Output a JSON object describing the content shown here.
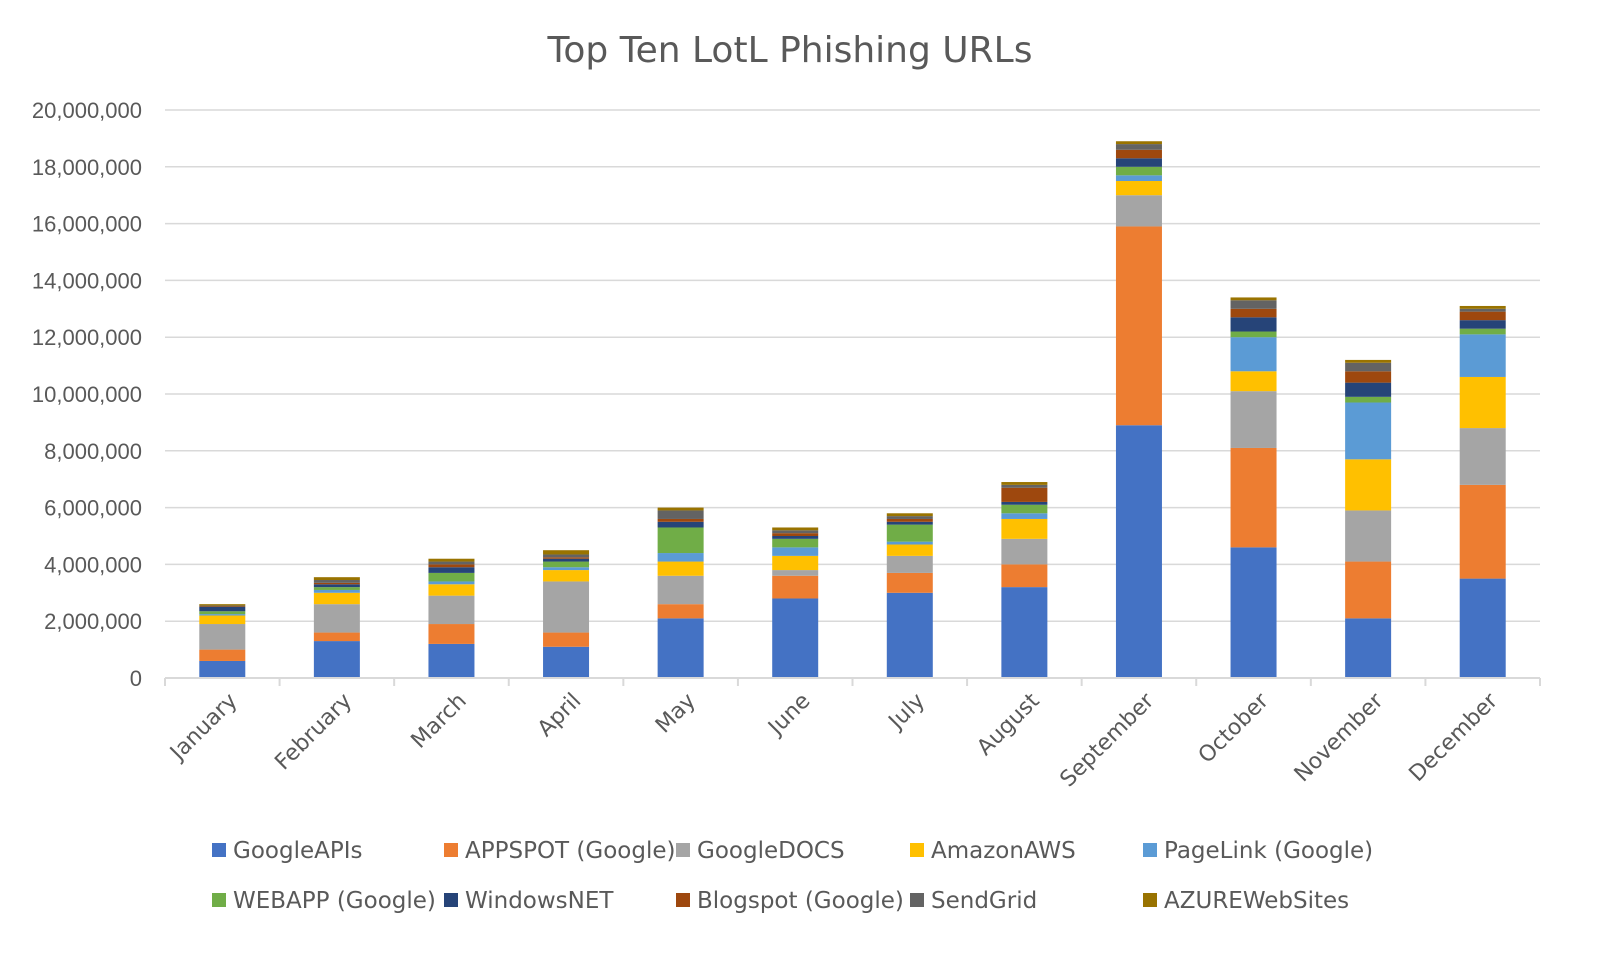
{
  "chart_data": {
    "type": "bar",
    "stacked": true,
    "title": "Top Ten LotL Phishing URLs",
    "xlabel": "",
    "ylabel": "",
    "ylim": [
      0,
      20000000
    ],
    "yticks": [
      "0",
      "2,000,000",
      "4,000,000",
      "6,000,000",
      "8,000,000",
      "10,000,000",
      "12,000,000",
      "14,000,000",
      "16,000,000",
      "18,000,000",
      "20,000,000"
    ],
    "ytick_values": [
      0,
      2000000,
      4000000,
      6000000,
      8000000,
      10000000,
      12000000,
      14000000,
      16000000,
      18000000,
      20000000
    ],
    "grid": true,
    "legend_position": "bottom",
    "categories": [
      "January",
      "February",
      "March",
      "April",
      "May",
      "June",
      "July",
      "August",
      "September",
      "October",
      "November",
      "December"
    ],
    "series": [
      {
        "name": "GoogleAPIs",
        "color": "#4472C4",
        "values": [
          600000,
          1300000,
          1200000,
          1100000,
          2100000,
          2800000,
          3000000,
          3200000,
          8900000,
          4600000,
          2100000,
          3500000
        ]
      },
      {
        "name": "APPSPOT (Google)",
        "color": "#ED7D31",
        "values": [
          400000,
          300000,
          700000,
          500000,
          500000,
          800000,
          700000,
          800000,
          7000000,
          3500000,
          2000000,
          3300000
        ]
      },
      {
        "name": "GoogleDOCS",
        "color": "#A5A5A5",
        "values": [
          900000,
          1000000,
          1000000,
          1800000,
          1000000,
          200000,
          600000,
          900000,
          1100000,
          2000000,
          1800000,
          2000000
        ]
      },
      {
        "name": "AmazonAWS",
        "color": "#FFC000",
        "values": [
          300000,
          400000,
          400000,
          400000,
          500000,
          500000,
          400000,
          700000,
          500000,
          700000,
          1800000,
          1800000
        ]
      },
      {
        "name": "PageLink (Google)",
        "color": "#5B9BD5",
        "values": [
          50000,
          100000,
          100000,
          100000,
          300000,
          300000,
          100000,
          200000,
          200000,
          1200000,
          2000000,
          1500000
        ]
      },
      {
        "name": "WEBAPP (Google)",
        "color": "#70AD47",
        "values": [
          100000,
          100000,
          300000,
          200000,
          900000,
          300000,
          600000,
          300000,
          300000,
          200000,
          200000,
          200000
        ]
      },
      {
        "name": "WindowsNET",
        "color": "#264478",
        "values": [
          150000,
          100000,
          200000,
          100000,
          200000,
          100000,
          100000,
          100000,
          300000,
          500000,
          500000,
          300000
        ]
      },
      {
        "name": "Blogspot (Google)",
        "color": "#9E480E",
        "values": [
          20000,
          50000,
          100000,
          50000,
          100000,
          100000,
          100000,
          500000,
          300000,
          300000,
          400000,
          300000
        ]
      },
      {
        "name": "SendGrid",
        "color": "#636363",
        "values": [
          30000,
          100000,
          100000,
          100000,
          300000,
          100000,
          100000,
          100000,
          200000,
          300000,
          300000,
          100000
        ]
      },
      {
        "name": "AZUREWebSites",
        "color": "#997300",
        "values": [
          50000,
          100000,
          100000,
          150000,
          100000,
          100000,
          100000,
          100000,
          100000,
          100000,
          100000,
          100000
        ]
      }
    ]
  }
}
